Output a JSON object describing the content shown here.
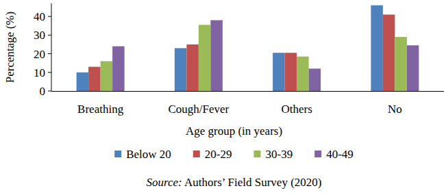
{
  "chart_data": {
    "type": "bar",
    "y_label": "Percentage (%)",
    "x_label": "Age group (in years)",
    "categories": [
      "Breathing",
      "Cough/Fever",
      "Others",
      "No"
    ],
    "series": [
      {
        "name": "Below 20",
        "color": "#4f81bd",
        "values": [
          10,
          23,
          20.5,
          46
        ]
      },
      {
        "name": "20-29",
        "color": "#c0504d",
        "values": [
          13,
          25,
          20.5,
          41
        ]
      },
      {
        "name": "30-39",
        "color": "#9bbb59",
        "values": [
          16,
          35.5,
          18.5,
          29
        ]
      },
      {
        "name": "40-49",
        "color": "#8064a2",
        "values": [
          24,
          38,
          12,
          24.5
        ]
      }
    ],
    "ylim": [
      0,
      47
    ],
    "yticks": [
      0,
      10,
      20,
      30,
      40
    ],
    "grid": false,
    "legend": "bottom",
    "annotations": [
      "Source:",
      "Authors’ Field Survey (2020)"
    ]
  }
}
